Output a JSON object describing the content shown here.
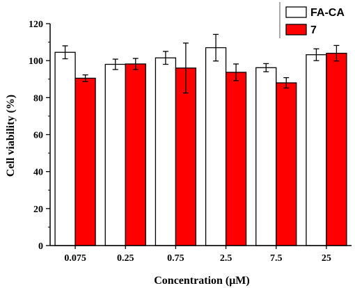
{
  "chart_data": {
    "type": "bar",
    "title": "",
    "xlabel": "Concentration (μM)",
    "ylabel": "Cell viability (%)",
    "categories": [
      "0.075",
      "0.25",
      "0.75",
      "2.5",
      "7.5",
      "25"
    ],
    "ylim": [
      0,
      120
    ],
    "yticks": [
      0,
      20,
      40,
      60,
      80,
      100,
      120
    ],
    "grid": false,
    "legend_position": "top-right",
    "series": [
      {
        "name": "FA-CA",
        "color": "#ffffff",
        "values": [
          104.5,
          98.0,
          101.5,
          107.0,
          96.2,
          103.2
        ],
        "errors": [
          3.5,
          2.8,
          3.5,
          7.2,
          2.2,
          3.2
        ]
      },
      {
        "name": "7",
        "color": "#ff0000",
        "values": [
          90.5,
          98.2,
          96.0,
          93.7,
          88.0,
          104.0
        ],
        "errors": [
          1.8,
          3.0,
          13.5,
          4.5,
          2.8,
          4.2
        ]
      }
    ]
  }
}
